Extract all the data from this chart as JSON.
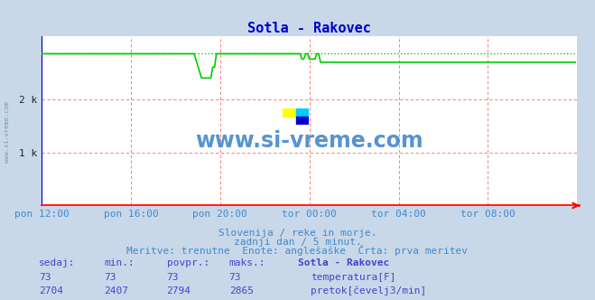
{
  "title": "Sotla - Rakovec",
  "title_color": "#0000cc",
  "bg_color": "#c8d8e8",
  "plot_bg_color": "#ffffff",
  "grid_color": "#ff6666",
  "axis_color": "#ff0000",
  "xlim": [
    0,
    288
  ],
  "ylim": [
    0,
    3200
  ],
  "ytick_positions": [
    1000,
    2000
  ],
  "ytick_labels": [
    "1 k",
    "2 k"
  ],
  "xtick_positions": [
    0,
    48,
    96,
    144,
    192,
    240
  ],
  "xtick_labels": [
    "pon 12:00",
    "pon 16:00",
    "pon 20:00",
    "tor 00:00",
    "tor 04:00",
    "tor 08:00"
  ],
  "temp_color": "#ff0000",
  "flow_color": "#00cc00",
  "flow_max": 2865,
  "flow_min": 2407,
  "flow_current": 2704,
  "subtitle1": "Slovenija / reke in morje.",
  "subtitle2": "zadnji dan / 5 minut.",
  "subtitle3": "Meritve: trenutne  Enote: anglešaške  Črta: prva meritev",
  "subtitle_color": "#4488cc",
  "table_headers": [
    "sedaj:",
    "min.:",
    "povpr.:",
    "maks.:",
    "Sotla - Rakovec"
  ],
  "table_row1": [
    "73",
    "73",
    "73",
    "73"
  ],
  "table_row2": [
    "2704",
    "2407",
    "2794",
    "2865"
  ],
  "table_color": "#4444cc",
  "watermark_text": "www.si-vreme.com",
  "watermark_color": "#4488cc",
  "left_text": "www.si-vreme.com"
}
